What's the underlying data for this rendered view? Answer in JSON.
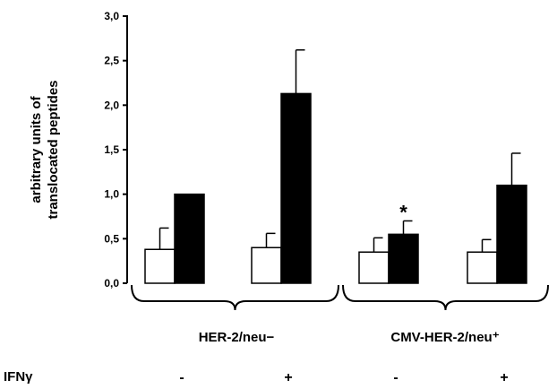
{
  "chart_data": {
    "type": "bar",
    "ylabel_lines": [
      "arbitrary units of",
      "translocated peptides"
    ],
    "ylim": [
      0,
      3.0
    ],
    "yticks": [
      "0,0",
      "0,5",
      "1,0",
      "1,5",
      "2,0",
      "2,5",
      "3,0"
    ],
    "ytick_values": [
      0,
      0.5,
      1.0,
      1.5,
      2.0,
      2.5,
      3.0
    ],
    "groups": [
      {
        "label": "HER-2/neu−"
      },
      {
        "label": "CMV-HER-2/neu⁺"
      }
    ],
    "categories": [
      {
        "group": 0,
        "ifn": "-"
      },
      {
        "group": 0,
        "ifn": "+"
      },
      {
        "group": 1,
        "ifn": "-"
      },
      {
        "group": 1,
        "ifn": "+"
      }
    ],
    "series": [
      {
        "fill": "#ffffff",
        "values": [
          0.38,
          0.4,
          0.35,
          0.35
        ],
        "errors": [
          0.24,
          0.16,
          0.16,
          0.14
        ]
      },
      {
        "fill": "#000000",
        "values": [
          1.0,
          2.13,
          0.55,
          1.1
        ],
        "errors": [
          0.0,
          0.49,
          0.15,
          0.36
        ]
      }
    ],
    "annotations": [
      {
        "text": "*",
        "category": 2,
        "series": 1
      }
    ],
    "row_label": "IFNγ",
    "grid": false
  }
}
